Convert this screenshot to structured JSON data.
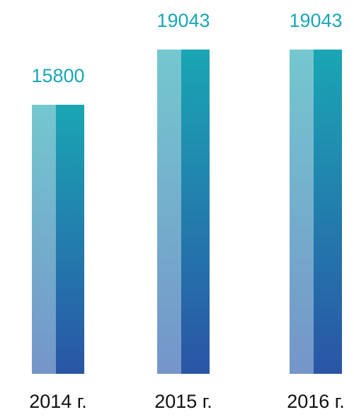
{
  "chart_data": {
    "type": "bar",
    "categories": [
      "2014 г.",
      "2015 г.",
      "2016 г."
    ],
    "values": [
      15800,
      19043,
      19043
    ],
    "value_labels": [
      "15800",
      "19043",
      "19043"
    ],
    "title": "",
    "xlabel": "",
    "ylabel": "",
    "ylim": [
      0,
      20000
    ],
    "grid": false,
    "axes_visible": false
  },
  "colors": {
    "value_label": "#1aa6b7",
    "category_label": "#111111",
    "bar_light_top": "#74c7cf",
    "bar_light_bottom": "#7495c9",
    "bar_dark_top": "#1aa6b4",
    "bar_dark_bottom": "#2a55a6"
  }
}
